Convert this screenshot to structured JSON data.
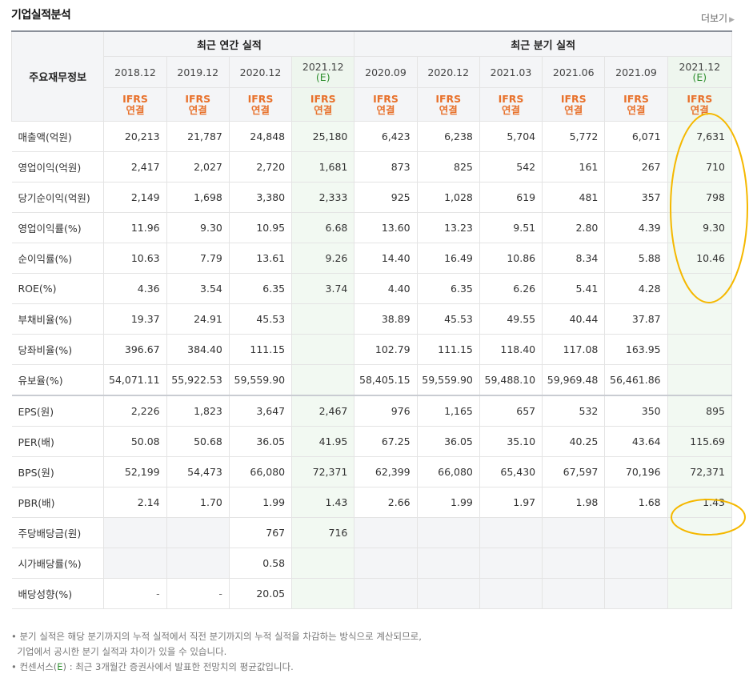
{
  "title": "기업실적분석",
  "more_label": "더보기",
  "header": {
    "corner": "주요재무정보",
    "annual_group": "최근 연간 실적",
    "quarter_group": "최근 분기 실적",
    "periods": [
      "2018.12",
      "2019.12",
      "2020.12",
      "2021.12",
      "2020.09",
      "2020.12",
      "2021.03",
      "2021.06",
      "2021.09",
      "2021.12"
    ],
    "estimate_tags": [
      "",
      "",
      "",
      "(E)",
      "",
      "",
      "",
      "",
      "",
      "(E)"
    ],
    "ifrs_top": "IFRS",
    "ifrs_bottom": "연결"
  },
  "rows": [
    {
      "label": "매출액(억원)",
      "values": [
        "20,213",
        "21,787",
        "24,848",
        "25,180",
        "6,423",
        "6,238",
        "5,704",
        "5,772",
        "6,071",
        "7,631"
      ]
    },
    {
      "label": "영업이익(억원)",
      "values": [
        "2,417",
        "2,027",
        "2,720",
        "1,681",
        "873",
        "825",
        "542",
        "161",
        "267",
        "710"
      ]
    },
    {
      "label": "당기순이익(억원)",
      "values": [
        "2,149",
        "1,698",
        "3,380",
        "2,333",
        "925",
        "1,028",
        "619",
        "481",
        "357",
        "798"
      ]
    },
    {
      "label": "영업이익률(%)",
      "values": [
        "11.96",
        "9.30",
        "10.95",
        "6.68",
        "13.60",
        "13.23",
        "9.51",
        "2.80",
        "4.39",
        "9.30"
      ]
    },
    {
      "label": "순이익률(%)",
      "values": [
        "10.63",
        "7.79",
        "13.61",
        "9.26",
        "14.40",
        "16.49",
        "10.86",
        "8.34",
        "5.88",
        "10.46"
      ]
    },
    {
      "label": "ROE(%)",
      "values": [
        "4.36",
        "3.54",
        "6.35",
        "3.74",
        "4.40",
        "6.35",
        "6.26",
        "5.41",
        "4.28",
        ""
      ]
    },
    {
      "label": "부채비율(%)",
      "values": [
        "19.37",
        "24.91",
        "45.53",
        "",
        "38.89",
        "45.53",
        "49.55",
        "40.44",
        "37.87",
        ""
      ]
    },
    {
      "label": "당좌비율(%)",
      "values": [
        "396.67",
        "384.40",
        "111.15",
        "",
        "102.79",
        "111.15",
        "118.40",
        "117.08",
        "163.95",
        ""
      ]
    },
    {
      "label": "유보율(%)",
      "values": [
        "54,071.11",
        "55,922.53",
        "59,559.90",
        "",
        "58,405.15",
        "59,559.90",
        "59,488.10",
        "59,969.48",
        "56,461.86",
        ""
      ]
    },
    {
      "label": "EPS(원)",
      "values": [
        "2,226",
        "1,823",
        "3,647",
        "2,467",
        "976",
        "1,165",
        "657",
        "532",
        "350",
        "895"
      ]
    },
    {
      "label": "PER(배)",
      "values": [
        "50.08",
        "50.68",
        "36.05",
        "41.95",
        "67.25",
        "36.05",
        "35.10",
        "40.25",
        "43.64",
        "115.69"
      ]
    },
    {
      "label": "BPS(원)",
      "values": [
        "52,199",
        "54,473",
        "66,080",
        "72,371",
        "62,399",
        "66,080",
        "65,430",
        "67,597",
        "70,196",
        "72,371"
      ]
    },
    {
      "label": "PBR(배)",
      "values": [
        "2.14",
        "1.70",
        "1.99",
        "1.43",
        "2.66",
        "1.99",
        "1.97",
        "1.98",
        "1.68",
        "1.43"
      ]
    },
    {
      "label": "주당배당금(원)",
      "values": [
        "",
        "",
        "767",
        "716",
        "",
        "",
        "",
        "",
        "",
        ""
      ]
    },
    {
      "label": "시가배당률(%)",
      "values": [
        "",
        "",
        "0.58",
        "",
        "",
        "",
        "",
        "",
        "",
        ""
      ]
    },
    {
      "label": "배당성향(%)",
      "values": [
        "-",
        "-",
        "20.05",
        "",
        "",
        "",
        "",
        "",
        "",
        ""
      ]
    }
  ],
  "notes": {
    "line1": "분기 실적은 해당 분기까지의 누적 실적에서 직전 분기까지의 누적 실적을 차감하는 방식으로 계산되므로,",
    "line2": "기업에서 공시한 분기 실적과 차이가 있을 수 있습니다.",
    "line3_prefix": "컨센서스(",
    "line3_e": "E",
    "line3_suffix": ") : 최근 3개월간 증권사에서 발표한 전망치의 평균값입니다."
  },
  "colors": {
    "ifrs": "#e8712b",
    "consensus_bg": "#f2f9f2",
    "highlight_circle": "#f5b800",
    "estimate": "#2f8f2f"
  }
}
